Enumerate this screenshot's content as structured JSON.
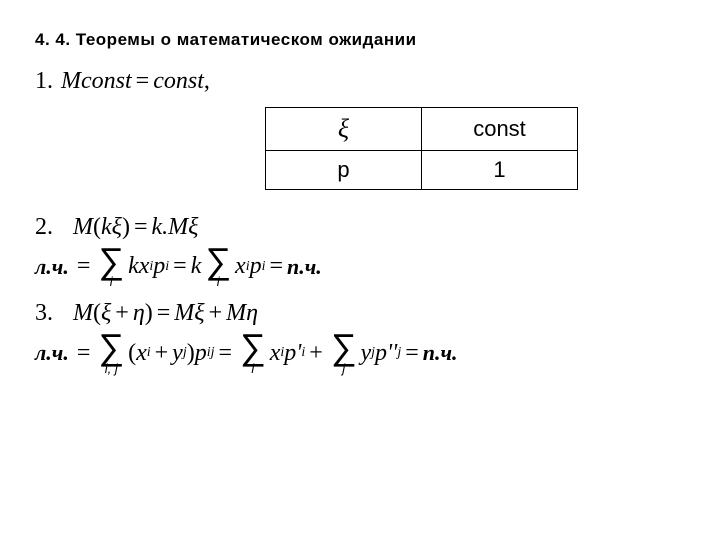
{
  "title": "4. 4.  Теоремы  о  математическом  ожидании",
  "item1": {
    "num": "1.",
    "eq": "Mconst = const,"
  },
  "table": {
    "r1c1": "ξ",
    "r1c2": "const",
    "r2c1": "p",
    "r2c2": "1"
  },
  "item2": {
    "num": "2.",
    "lhs": "M(kξ) = k.Mξ",
    "proof_label_l": "л.ч.",
    "proof_label_r": "п.ч."
  },
  "item3": {
    "num": "3.",
    "lhs": "M(ξ + η) = Mξ + Mη",
    "proof_label_l": "л.ч.",
    "proof_label_r": "п.ч."
  }
}
